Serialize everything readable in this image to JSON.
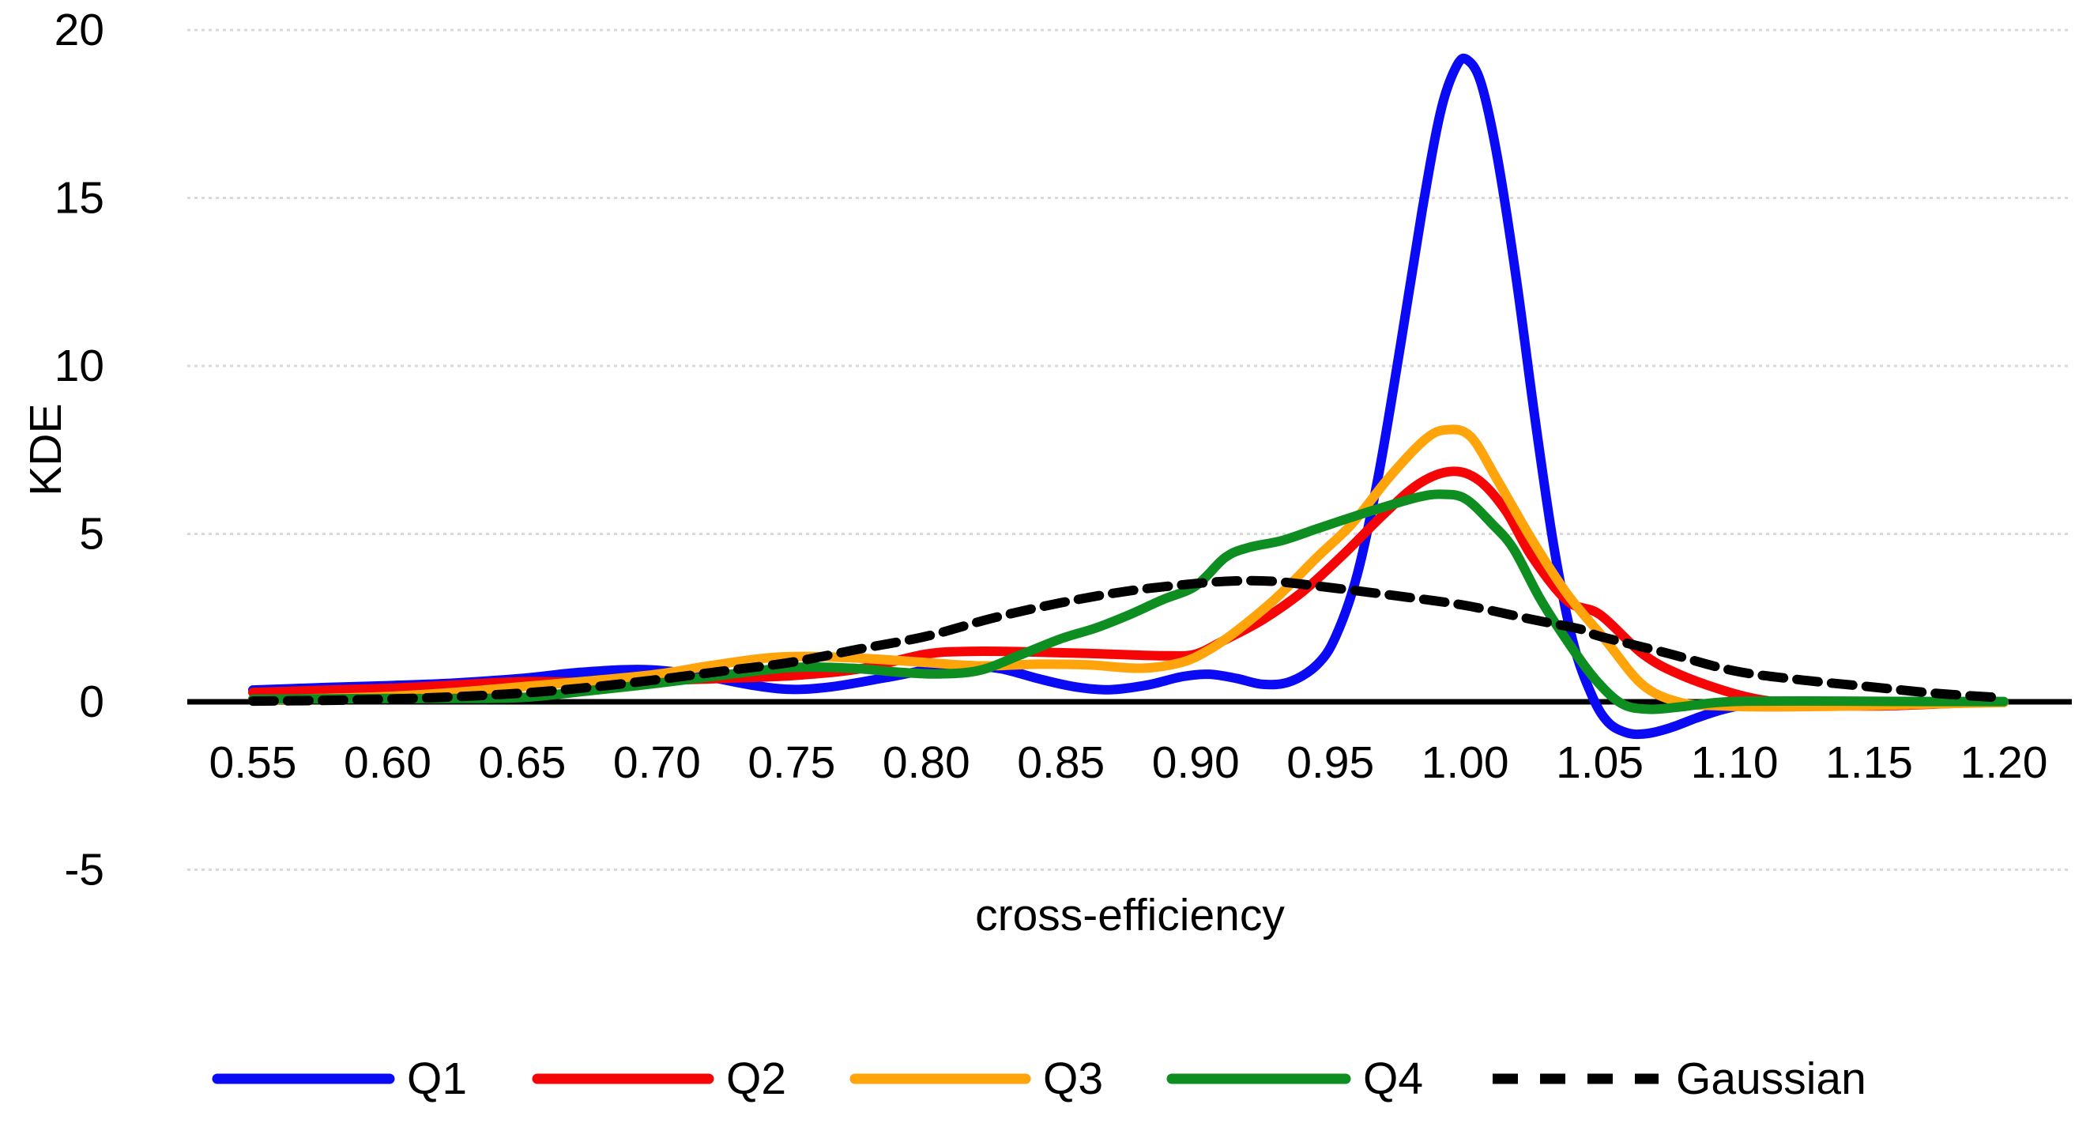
{
  "chart_data": {
    "type": "line",
    "title": "",
    "xlabel": "cross-efficiency",
    "ylabel": "KDE",
    "xlim": [
      0.55,
      1.2
    ],
    "ylim": [
      -5,
      20
    ],
    "x_ticks": [
      "0.55",
      "0.60",
      "0.65",
      "0.70",
      "0.75",
      "0.80",
      "0.85",
      "0.90",
      "0.95",
      "1.00",
      "1.05",
      "1.10",
      "1.15",
      "1.20"
    ],
    "y_ticks": [
      "-5",
      "0",
      "5",
      "10",
      "15",
      "20"
    ],
    "grid": "horizontal dashed gridlines at -5,5,10,15,20; solid black zero axis",
    "legend_position": "bottom",
    "gridline_color": "#D9D9D9",
    "axis_color": "#000000",
    "series": [
      {
        "name": "Q1",
        "color": "#0A0AF5",
        "style": "solid",
        "points": [
          [
            0.55,
            0.35
          ],
          [
            0.575,
            0.42
          ],
          [
            0.6,
            0.48
          ],
          [
            0.625,
            0.56
          ],
          [
            0.65,
            0.7
          ],
          [
            0.672,
            0.88
          ],
          [
            0.695,
            0.96
          ],
          [
            0.715,
            0.8
          ],
          [
            0.735,
            0.5
          ],
          [
            0.75,
            0.37
          ],
          [
            0.765,
            0.45
          ],
          [
            0.785,
            0.72
          ],
          [
            0.805,
            1.02
          ],
          [
            0.815,
            1.08
          ],
          [
            0.828,
            0.98
          ],
          [
            0.842,
            0.68
          ],
          [
            0.855,
            0.45
          ],
          [
            0.868,
            0.36
          ],
          [
            0.882,
            0.5
          ],
          [
            0.895,
            0.75
          ],
          [
            0.905,
            0.82
          ],
          [
            0.915,
            0.7
          ],
          [
            0.925,
            0.52
          ],
          [
            0.935,
            0.6
          ],
          [
            0.945,
            1.1
          ],
          [
            0.952,
            1.95
          ],
          [
            0.96,
            3.8
          ],
          [
            0.968,
            6.8
          ],
          [
            0.976,
            10.6
          ],
          [
            0.984,
            14.6
          ],
          [
            0.991,
            17.6
          ],
          [
            0.997,
            18.95
          ],
          [
            1.001,
            19.1
          ],
          [
            1.006,
            18.4
          ],
          [
            1.012,
            16.2
          ],
          [
            1.019,
            12.6
          ],
          [
            1.026,
            8.4
          ],
          [
            1.033,
            4.6
          ],
          [
            1.04,
            1.8
          ],
          [
            1.047,
            0.2
          ],
          [
            1.053,
            -0.6
          ],
          [
            1.06,
            -0.92
          ],
          [
            1.067,
            -0.95
          ],
          [
            1.076,
            -0.78
          ],
          [
            1.086,
            -0.48
          ],
          [
            1.096,
            -0.22
          ],
          [
            1.106,
            -0.07
          ],
          [
            1.12,
            -0.01
          ],
          [
            1.14,
            0.0
          ],
          [
            1.17,
            0.0
          ],
          [
            1.2,
            0.0
          ]
        ]
      },
      {
        "name": "Q2",
        "color": "#F50505",
        "style": "solid",
        "points": [
          [
            0.55,
            0.28
          ],
          [
            0.575,
            0.34
          ],
          [
            0.6,
            0.4
          ],
          [
            0.625,
            0.5
          ],
          [
            0.65,
            0.6
          ],
          [
            0.675,
            0.58
          ],
          [
            0.7,
            0.63
          ],
          [
            0.725,
            0.7
          ],
          [
            0.75,
            0.78
          ],
          [
            0.775,
            0.98
          ],
          [
            0.8,
            1.42
          ],
          [
            0.815,
            1.5
          ],
          [
            0.83,
            1.5
          ],
          [
            0.845,
            1.47
          ],
          [
            0.86,
            1.44
          ],
          [
            0.875,
            1.4
          ],
          [
            0.89,
            1.37
          ],
          [
            0.9,
            1.42
          ],
          [
            0.911,
            1.85
          ],
          [
            0.925,
            2.45
          ],
          [
            0.94,
            3.3
          ],
          [
            0.955,
            4.4
          ],
          [
            0.97,
            5.6
          ],
          [
            0.983,
            6.5
          ],
          [
            0.995,
            6.86
          ],
          [
            1.005,
            6.6
          ],
          [
            1.015,
            5.7
          ],
          [
            1.025,
            4.3
          ],
          [
            1.038,
            3.0
          ],
          [
            1.05,
            2.6
          ],
          [
            1.066,
            1.42
          ],
          [
            1.08,
            0.8
          ],
          [
            1.1,
            0.24
          ],
          [
            1.115,
            0.0
          ],
          [
            1.13,
            -0.1
          ],
          [
            1.155,
            -0.12
          ],
          [
            1.18,
            -0.05
          ],
          [
            1.2,
            0.0
          ]
        ]
      },
      {
        "name": "Q3",
        "color": "#FFA40A",
        "style": "solid",
        "points": [
          [
            0.55,
            0.05
          ],
          [
            0.575,
            0.1
          ],
          [
            0.6,
            0.16
          ],
          [
            0.625,
            0.28
          ],
          [
            0.65,
            0.45
          ],
          [
            0.675,
            0.62
          ],
          [
            0.7,
            0.82
          ],
          [
            0.72,
            1.08
          ],
          [
            0.74,
            1.3
          ],
          [
            0.755,
            1.35
          ],
          [
            0.775,
            1.3
          ],
          [
            0.8,
            1.17
          ],
          [
            0.82,
            1.07
          ],
          [
            0.842,
            1.12
          ],
          [
            0.86,
            1.1
          ],
          [
            0.88,
            1.0
          ],
          [
            0.895,
            1.18
          ],
          [
            0.905,
            1.55
          ],
          [
            0.915,
            2.1
          ],
          [
            0.93,
            3.1
          ],
          [
            0.945,
            4.3
          ],
          [
            0.958,
            5.3
          ],
          [
            0.972,
            6.7
          ],
          [
            0.985,
            7.8
          ],
          [
            0.993,
            8.1
          ],
          [
            1.002,
            7.9
          ],
          [
            1.012,
            6.6
          ],
          [
            1.025,
            4.8
          ],
          [
            1.038,
            3.2
          ],
          [
            1.052,
            1.85
          ],
          [
            1.066,
            0.5
          ],
          [
            1.08,
            -0.02
          ],
          [
            1.095,
            -0.12
          ],
          [
            1.115,
            -0.15
          ],
          [
            1.145,
            -0.12
          ],
          [
            1.175,
            -0.06
          ],
          [
            1.2,
            -0.02
          ]
        ]
      },
      {
        "name": "Q4",
        "color": "#0E8E21",
        "style": "solid",
        "points": [
          [
            0.55,
            0.08
          ],
          [
            0.575,
            0.09
          ],
          [
            0.6,
            0.1
          ],
          [
            0.625,
            0.1
          ],
          [
            0.65,
            0.13
          ],
          [
            0.675,
            0.33
          ],
          [
            0.7,
            0.55
          ],
          [
            0.725,
            0.8
          ],
          [
            0.75,
            1.02
          ],
          [
            0.772,
            1.0
          ],
          [
            0.79,
            0.88
          ],
          [
            0.805,
            0.83
          ],
          [
            0.82,
            0.94
          ],
          [
            0.835,
            1.4
          ],
          [
            0.85,
            1.88
          ],
          [
            0.863,
            2.2
          ],
          [
            0.875,
            2.58
          ],
          [
            0.888,
            3.05
          ],
          [
            0.9,
            3.45
          ],
          [
            0.911,
            4.3
          ],
          [
            0.92,
            4.6
          ],
          [
            0.932,
            4.8
          ],
          [
            0.945,
            5.15
          ],
          [
            0.958,
            5.5
          ],
          [
            0.972,
            5.85
          ],
          [
            0.983,
            6.1
          ],
          [
            0.991,
            6.18
          ],
          [
            1.0,
            6.05
          ],
          [
            1.01,
            5.3
          ],
          [
            1.018,
            4.55
          ],
          [
            1.028,
            3.05
          ],
          [
            1.038,
            1.8
          ],
          [
            1.048,
            0.7
          ],
          [
            1.058,
            -0.05
          ],
          [
            1.068,
            -0.22
          ],
          [
            1.08,
            -0.15
          ],
          [
            1.092,
            -0.03
          ],
          [
            1.105,
            0.02
          ],
          [
            1.14,
            0.02
          ],
          [
            1.17,
            0.01
          ],
          [
            1.2,
            0.01
          ]
        ]
      },
      {
        "name": "Gaussian",
        "color": "#000000",
        "style": "dashed",
        "points": [
          [
            0.55,
            0.02
          ],
          [
            0.575,
            0.04
          ],
          [
            0.6,
            0.08
          ],
          [
            0.625,
            0.15
          ],
          [
            0.65,
            0.26
          ],
          [
            0.675,
            0.43
          ],
          [
            0.7,
            0.66
          ],
          [
            0.725,
            0.92
          ],
          [
            0.75,
            1.18
          ],
          [
            0.775,
            1.57
          ],
          [
            0.8,
            1.95
          ],
          [
            0.825,
            2.5
          ],
          [
            0.85,
            2.95
          ],
          [
            0.875,
            3.3
          ],
          [
            0.9,
            3.52
          ],
          [
            0.915,
            3.6
          ],
          [
            0.93,
            3.58
          ],
          [
            0.95,
            3.4
          ],
          [
            0.975,
            3.15
          ],
          [
            1.0,
            2.87
          ],
          [
            1.025,
            2.45
          ],
          [
            1.043,
            2.16
          ],
          [
            1.05,
            1.95
          ],
          [
            1.075,
            1.45
          ],
          [
            1.1,
            0.92
          ],
          [
            1.125,
            0.65
          ],
          [
            1.15,
            0.45
          ],
          [
            1.175,
            0.25
          ],
          [
            1.2,
            0.12
          ]
        ]
      }
    ]
  }
}
